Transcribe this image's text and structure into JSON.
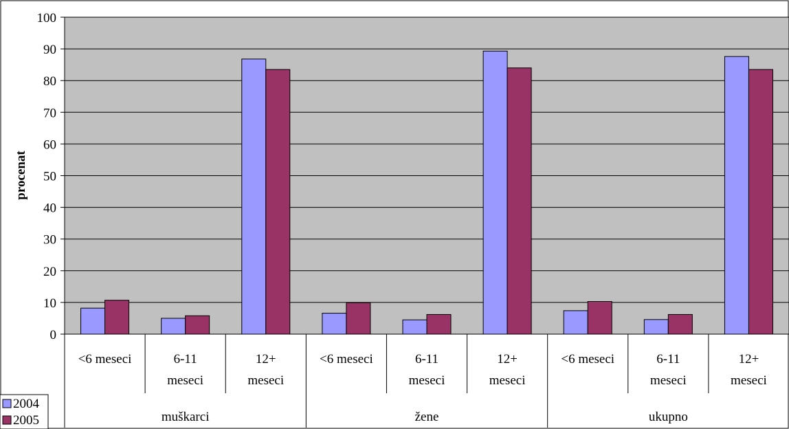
{
  "chart_data": {
    "type": "bar",
    "title": "",
    "xlabel": "",
    "ylabel": "procenat",
    "ylim": [
      0,
      100
    ],
    "yticks": [
      0,
      10,
      20,
      30,
      40,
      50,
      60,
      70,
      80,
      90,
      100
    ],
    "grid": true,
    "legend_position": "bottom-left",
    "groups": [
      {
        "name": "muškarci",
        "categories": [
          "<6 meseci",
          "6-11 meseci",
          "12+ meseci"
        ]
      },
      {
        "name": "žene",
        "categories": [
          "<6 meseci",
          "6-11 meseci",
          "12+ meseci"
        ]
      },
      {
        "name": "ukupno",
        "categories": [
          "<6 meseci",
          "6-11 meseci",
          "12+ meseci"
        ]
      }
    ],
    "category_lines": [
      [
        "<6 meseci"
      ],
      [
        "6-11",
        "meseci"
      ],
      [
        "12+",
        "meseci"
      ]
    ],
    "series": [
      {
        "name": "2004",
        "color": "#9999ff",
        "values": [
          8.2,
          5.0,
          86.8,
          6.6,
          4.5,
          89.3,
          7.4,
          4.6,
          87.6
        ]
      },
      {
        "name": "2005",
        "color": "#993366",
        "values": [
          10.7,
          5.8,
          83.5,
          9.9,
          6.2,
          84.0,
          10.3,
          6.2,
          83.5
        ]
      }
    ],
    "colors": {
      "plot_background": "#c0c0c0",
      "gridline": "#000000"
    }
  }
}
